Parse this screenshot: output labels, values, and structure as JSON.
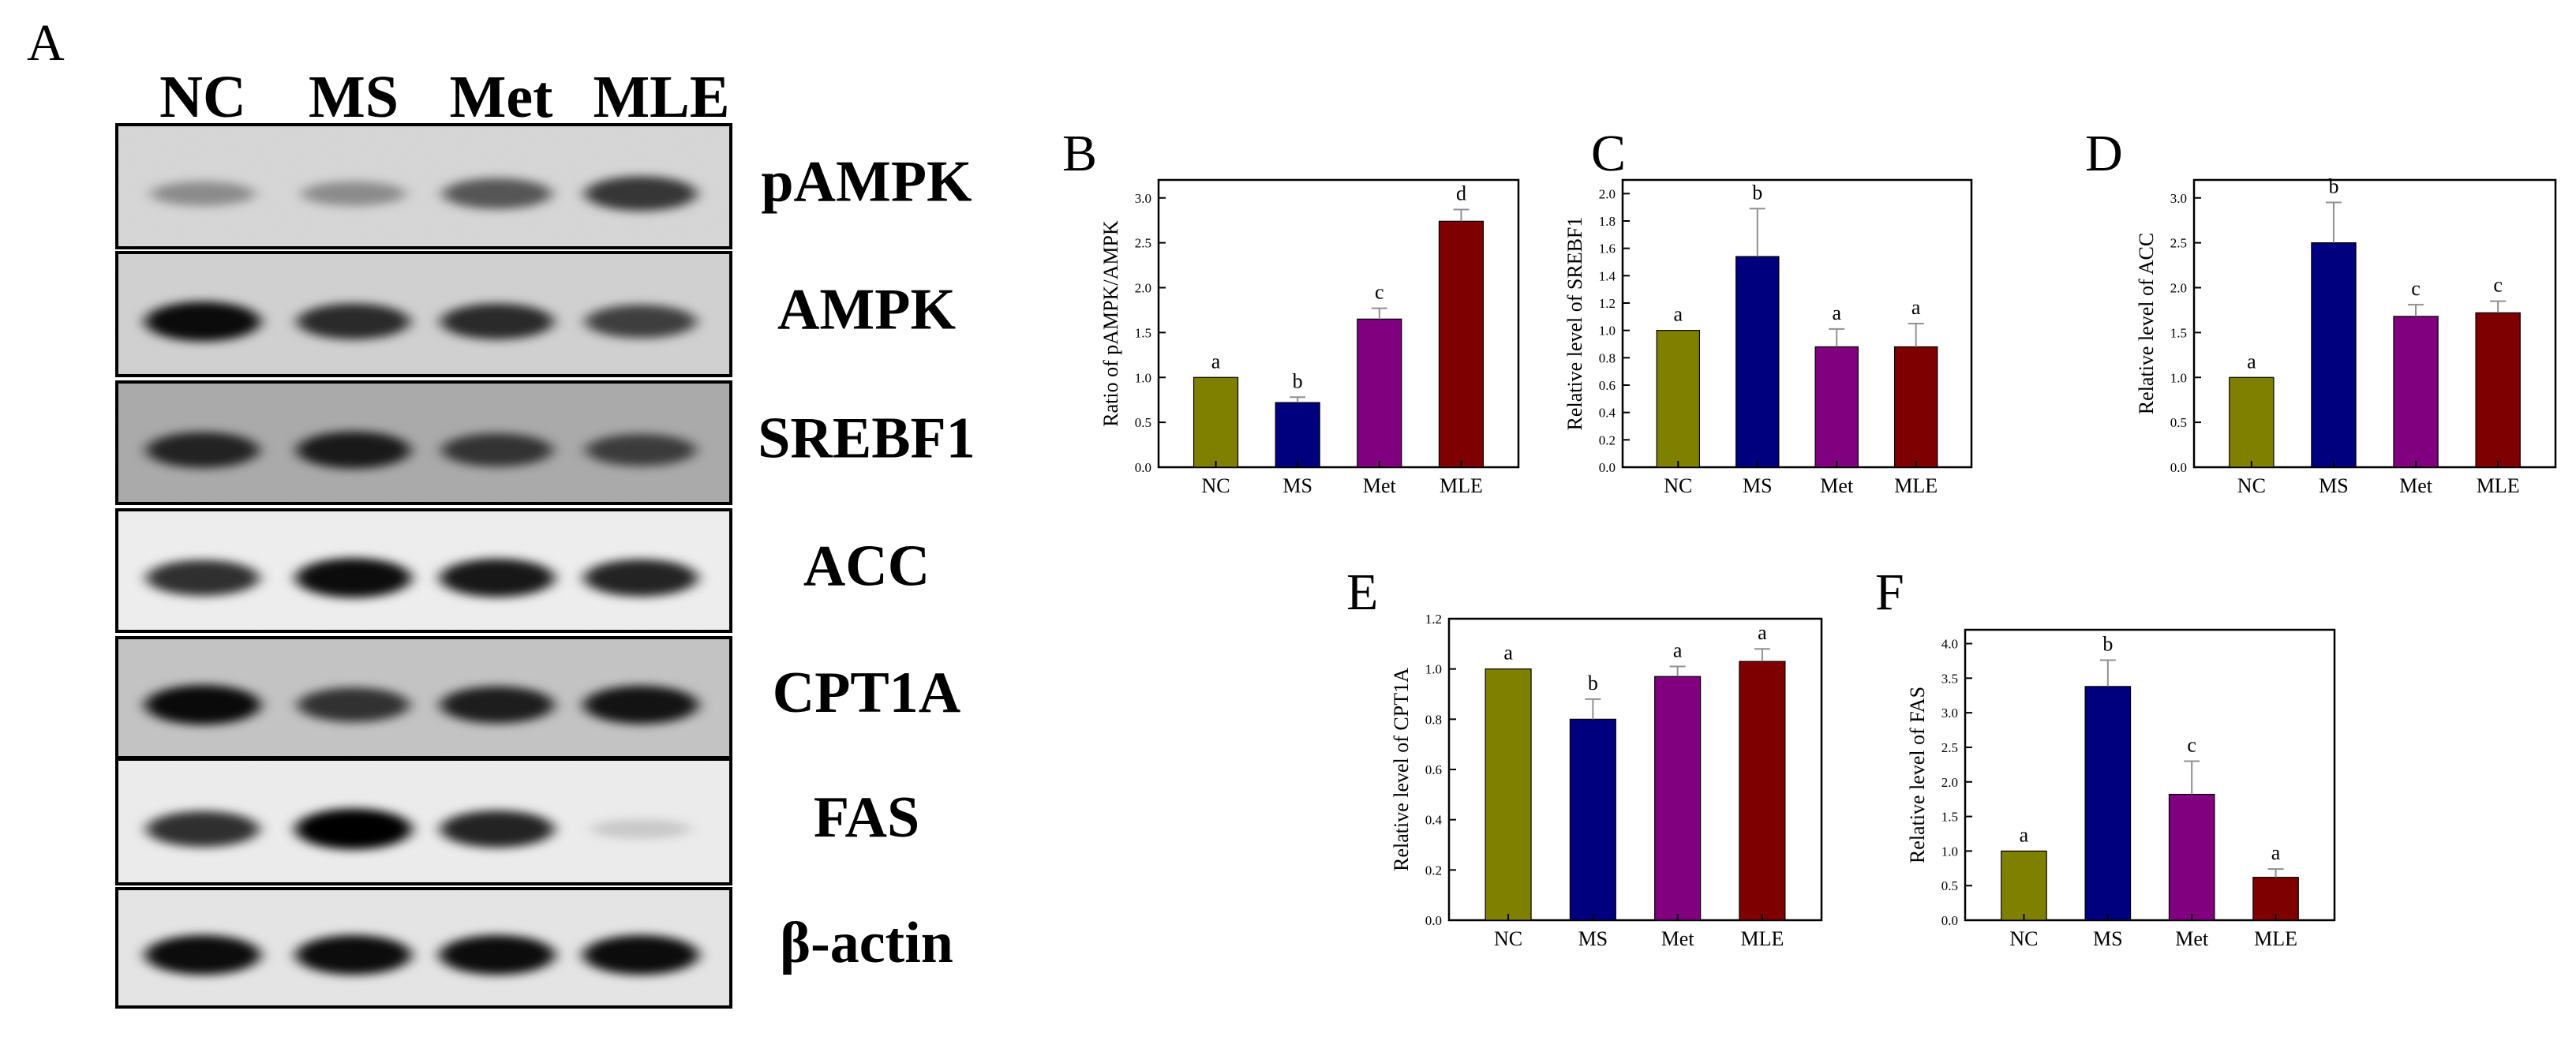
{
  "figure": {
    "panel_a": {
      "letter": "A",
      "lanes": [
        "NC",
        "MS",
        "Met",
        "MLE"
      ],
      "blots": [
        {
          "protein": "pAMPK",
          "intensity": [
            0.35,
            0.35,
            0.6,
            0.75
          ],
          "background": "#d8d8d8"
        },
        {
          "protein": "AMPK",
          "intensity": [
            0.95,
            0.8,
            0.8,
            0.7
          ],
          "background": "#d2d2d2"
        },
        {
          "protein": "SREBF1",
          "intensity": [
            0.8,
            0.85,
            0.7,
            0.65
          ],
          "background": "#a8a8a8"
        },
        {
          "protein": "ACC",
          "intensity": [
            0.8,
            0.95,
            0.9,
            0.85
          ],
          "background": "#f2f2f2"
        },
        {
          "protein": "CPT1A",
          "intensity": [
            0.95,
            0.75,
            0.85,
            0.9
          ],
          "background": "#c4c4c4"
        },
        {
          "protein": "FAS",
          "intensity": [
            0.8,
            1.0,
            0.85,
            0.15
          ],
          "background": "#f0f0f0"
        },
        {
          "protein": "β-actin",
          "intensity": [
            0.95,
            0.95,
            0.95,
            0.95
          ],
          "background": "#e8e8e8"
        }
      ]
    }
  },
  "chart_data": [
    {
      "panel": "B",
      "type": "bar",
      "categories": [
        "NC",
        "MS",
        "Met",
        "MLE"
      ],
      "values": [
        1.0,
        0.72,
        1.65,
        2.74
      ],
      "errors": [
        0.0,
        0.06,
        0.12,
        0.13
      ],
      "significance": [
        "a",
        "b",
        "c",
        "d"
      ],
      "ylabel": "Ratio of pAMPK/AMPK",
      "ylim": [
        0,
        3.2
      ],
      "yticks": [
        0.0,
        0.5,
        1.0,
        1.5,
        2.0,
        2.5,
        3.0
      ],
      "ytick_labels": [
        "0.0",
        "0.5",
        "1.0",
        "1.5",
        "2.0",
        "2.5",
        "3.0"
      ]
    },
    {
      "panel": "C",
      "type": "bar",
      "categories": [
        "NC",
        "MS",
        "Met",
        "MLE"
      ],
      "values": [
        1.0,
        1.54,
        0.88,
        0.88
      ],
      "errors": [
        0.0,
        0.35,
        0.13,
        0.17
      ],
      "significance": [
        "a",
        "b",
        "a",
        "a"
      ],
      "ylabel": "Relative level of SREBF1",
      "ylim": [
        0,
        2.1
      ],
      "yticks": [
        0.0,
        0.2,
        0.4,
        0.6,
        0.8,
        1.0,
        1.2,
        1.4,
        1.6,
        1.8,
        2.0
      ],
      "ytick_labels": [
        "0.0",
        "0.2",
        "0.4",
        "0.6",
        "0.8",
        "1.0",
        "1.2",
        "1.4",
        "1.6",
        "1.8",
        "2.0"
      ]
    },
    {
      "panel": "D",
      "type": "bar",
      "categories": [
        "NC",
        "MS",
        "Met",
        "MLE"
      ],
      "values": [
        1.0,
        2.5,
        1.68,
        1.72
      ],
      "errors": [
        0.0,
        0.45,
        0.13,
        0.13
      ],
      "significance": [
        "a",
        "b",
        "c",
        "c"
      ],
      "ylabel": "Relative level of ACC",
      "ylim": [
        0,
        3.2
      ],
      "yticks": [
        0.0,
        0.5,
        1.0,
        1.5,
        2.0,
        2.5,
        3.0
      ],
      "ytick_labels": [
        "0.0",
        "0.5",
        "1.0",
        "1.5",
        "2.0",
        "2.5",
        "3.0"
      ]
    },
    {
      "panel": "E",
      "type": "bar",
      "categories": [
        "NC",
        "MS",
        "Met",
        "MLE"
      ],
      "values": [
        1.0,
        0.8,
        0.97,
        1.03
      ],
      "errors": [
        0.0,
        0.08,
        0.04,
        0.05
      ],
      "significance": [
        "a",
        "b",
        "a",
        "a"
      ],
      "ylabel": "Relative level of CPT1A",
      "ylim": [
        0,
        1.2
      ],
      "yticks": [
        0.0,
        0.2,
        0.4,
        0.6,
        0.8,
        1.0,
        1.2
      ],
      "ytick_labels": [
        "0.0",
        "0.2",
        "0.4",
        "0.6",
        "0.8",
        "1.0",
        "1.2"
      ]
    },
    {
      "panel": "F",
      "type": "bar",
      "categories": [
        "NC",
        "MS",
        "Met",
        "MLE"
      ],
      "values": [
        1.0,
        3.38,
        1.82,
        0.62
      ],
      "errors": [
        0.0,
        0.38,
        0.48,
        0.12
      ],
      "significance": [
        "a",
        "b",
        "c",
        "a"
      ],
      "ylabel": "Relative level of FAS",
      "ylim": [
        0,
        4.2
      ],
      "yticks": [
        0.0,
        0.5,
        1.0,
        1.5,
        2.0,
        2.5,
        3.0,
        3.5,
        4.0
      ],
      "ytick_labels": [
        "0.0",
        "0.5",
        "1.0",
        "1.5",
        "2.0",
        "2.5",
        "3.0",
        "3.5",
        "4.0"
      ]
    }
  ],
  "colors": {
    "NC": "#808000",
    "MS": "#00007f",
    "Met": "#800080",
    "MLE": "#7f0000",
    "error_bar": "#909090",
    "axis": "#000000"
  }
}
